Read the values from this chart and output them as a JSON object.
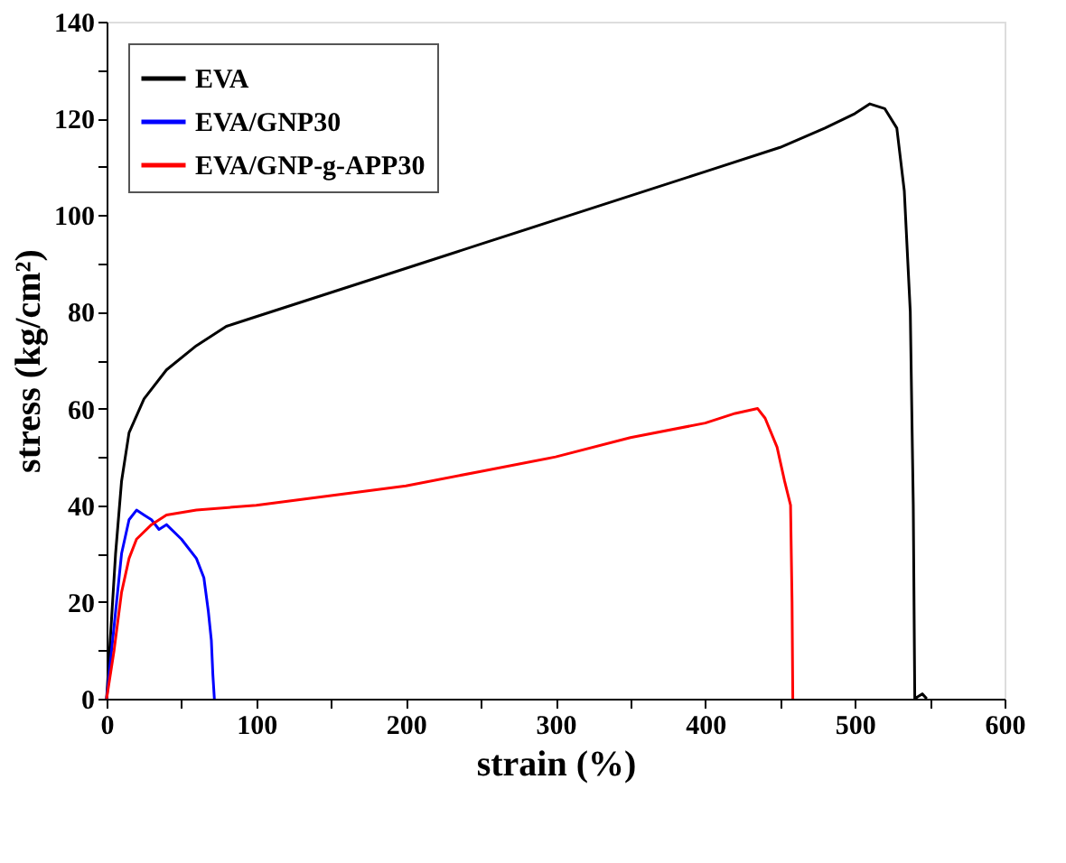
{
  "chart_data": {
    "type": "line",
    "xlabel": "strain (%)",
    "ylabel": "stress (kg/cm²)",
    "xlim": [
      0,
      600
    ],
    "ylim": [
      0,
      140
    ],
    "xticks": [
      0,
      {
        "value": 50,
        "label": null
      },
      100,
      {
        "value": 150,
        "label": null
      },
      200,
      {
        "value": 250,
        "label": null
      },
      300,
      {
        "value": 350,
        "label": null
      },
      400,
      {
        "value": 450,
        "label": null
      },
      500,
      {
        "value": 550,
        "label": null
      },
      600
    ],
    "yticks": [
      0,
      {
        "value": 10,
        "label": null
      },
      20,
      {
        "value": 30,
        "label": null
      },
      40,
      {
        "value": 50,
        "label": null
      },
      60,
      {
        "value": 70,
        "label": null
      },
      80,
      {
        "value": 90,
        "label": null
      },
      100,
      {
        "value": 110,
        "label": null
      },
      120,
      {
        "value": 130,
        "label": null
      },
      140
    ],
    "grid": false,
    "legend": "top left",
    "marker": "none",
    "line_style": "solid",
    "series": [
      {
        "name": "EVA",
        "color": "#000000",
        "x": [
          0,
          3,
          6,
          10,
          15,
          25,
          40,
          60,
          80,
          100,
          150,
          200,
          250,
          300,
          350,
          400,
          450,
          480,
          500,
          510,
          520,
          528,
          533,
          537,
          539,
          540,
          545,
          548
        ],
        "values": [
          0,
          15,
          30,
          45,
          55,
          62,
          68,
          73,
          77,
          79,
          84,
          89,
          94,
          99,
          104,
          109,
          114,
          118,
          121,
          123,
          122,
          118,
          105,
          80,
          40,
          0,
          1,
          0
        ]
      },
      {
        "name": "EVA/GNP30",
        "color": "#0000ff",
        "x": [
          0,
          5,
          10,
          15,
          20,
          25,
          30,
          35,
          40,
          50,
          60,
          65,
          68,
          70,
          71,
          72
        ],
        "values": [
          0,
          15,
          30,
          37,
          39,
          38,
          37,
          35,
          36,
          33,
          29,
          25,
          18,
          12,
          5,
          0
        ]
      },
      {
        "name": "EVA/GNP-g-APP30",
        "color": "#ff0000",
        "x": [
          0,
          5,
          10,
          15,
          20,
          30,
          40,
          60,
          100,
          150,
          200,
          250,
          300,
          350,
          400,
          420,
          435,
          440,
          448,
          453,
          457,
          458,
          458.5
        ],
        "values": [
          0,
          10,
          22,
          29,
          33,
          36,
          38,
          39,
          40,
          42,
          44,
          47,
          50,
          54,
          57,
          59,
          60,
          58,
          52,
          45,
          40,
          20,
          0
        ]
      }
    ]
  }
}
